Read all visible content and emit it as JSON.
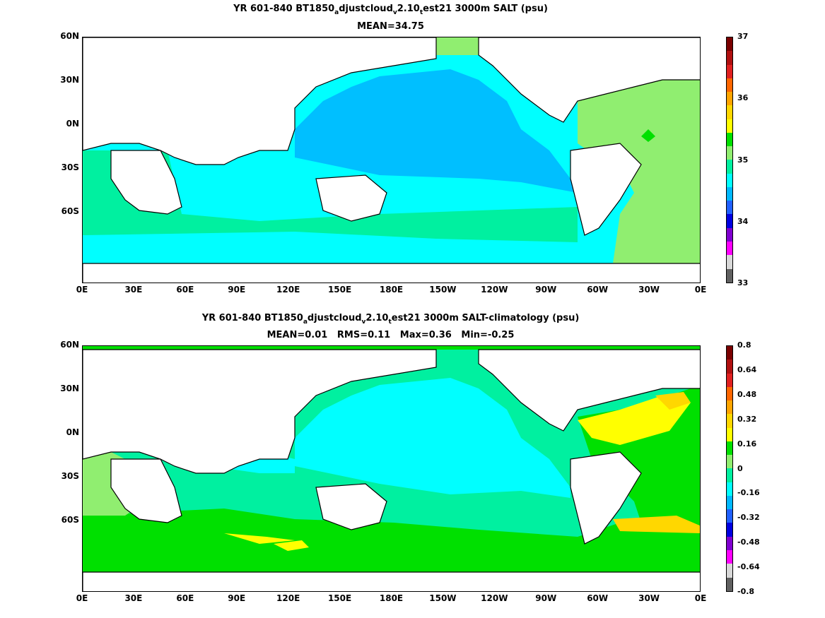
{
  "top": {
    "title_prefix": "YR 601-840 BT1850",
    "title_sub1": "a",
    "title_mid1": "djustcloud",
    "title_sub2": "v",
    "title_mid2": "2.10",
    "title_sub3": "t",
    "title_suffix": "est21 3000m SALT (psu)",
    "stats": "MEAN=34.75",
    "colorbar_labels": [
      "37",
      "36",
      "35",
      "34",
      "33"
    ],
    "colorbar_colors": [
      "#7a0000",
      "#b01010",
      "#e02020",
      "#ff6600",
      "#ffa500",
      "#ffd700",
      "#ffff00",
      "#00e000",
      "#90ee70",
      "#00f0a0",
      "#00ffff",
      "#00b8ff",
      "#2060ff",
      "#0000e0",
      "#8000d0",
      "#ff00ff",
      "#d8d8d8",
      "#606060"
    ]
  },
  "bottom": {
    "title_prefix": "YR 601-840 BT1850",
    "title_sub1": "a",
    "title_mid1": "djustcloud",
    "title_sub2": "v",
    "title_mid2": "2.10",
    "title_sub3": "t",
    "title_suffix": "est21 3000m SALT-climatology (psu)",
    "stats": "MEAN=0.01   RMS=0.11   Max=0.36   Min=-0.25",
    "colorbar_labels": [
      "0.8",
      "0.64",
      "0.48",
      "0.32",
      "0.16",
      "0",
      "-0.16",
      "-0.32",
      "-0.48",
      "-0.64",
      "-0.8"
    ],
    "colorbar_colors": [
      "#7a0000",
      "#b01010",
      "#e02020",
      "#ff6600",
      "#ffa500",
      "#ffd700",
      "#ffff00",
      "#00e000",
      "#90ee70",
      "#00f0a0",
      "#00ffff",
      "#00b8ff",
      "#2060ff",
      "#0000e0",
      "#8000d0",
      "#ff00ff",
      "#d8d8d8",
      "#606060"
    ]
  },
  "axes": {
    "lat_labels": [
      "60N",
      "30N",
      "0N",
      "30S",
      "60S"
    ],
    "lon_labels": [
      "0E",
      "30E",
      "60E",
      "90E",
      "120E",
      "150E",
      "180E",
      "150W",
      "120W",
      "90W",
      "60W",
      "30W",
      "0E"
    ]
  },
  "colors": {
    "pacific_top": "#00bfff",
    "ocean_cyan": "#00ffff",
    "ocean_aqua": "#00f0a0",
    "ocean_lightgreen": "#90ee70",
    "ocean_green": "#00e000",
    "yellow": "#ffff00",
    "gold": "#ffd700",
    "orange": "#ffa500",
    "land": "#ffffff"
  }
}
